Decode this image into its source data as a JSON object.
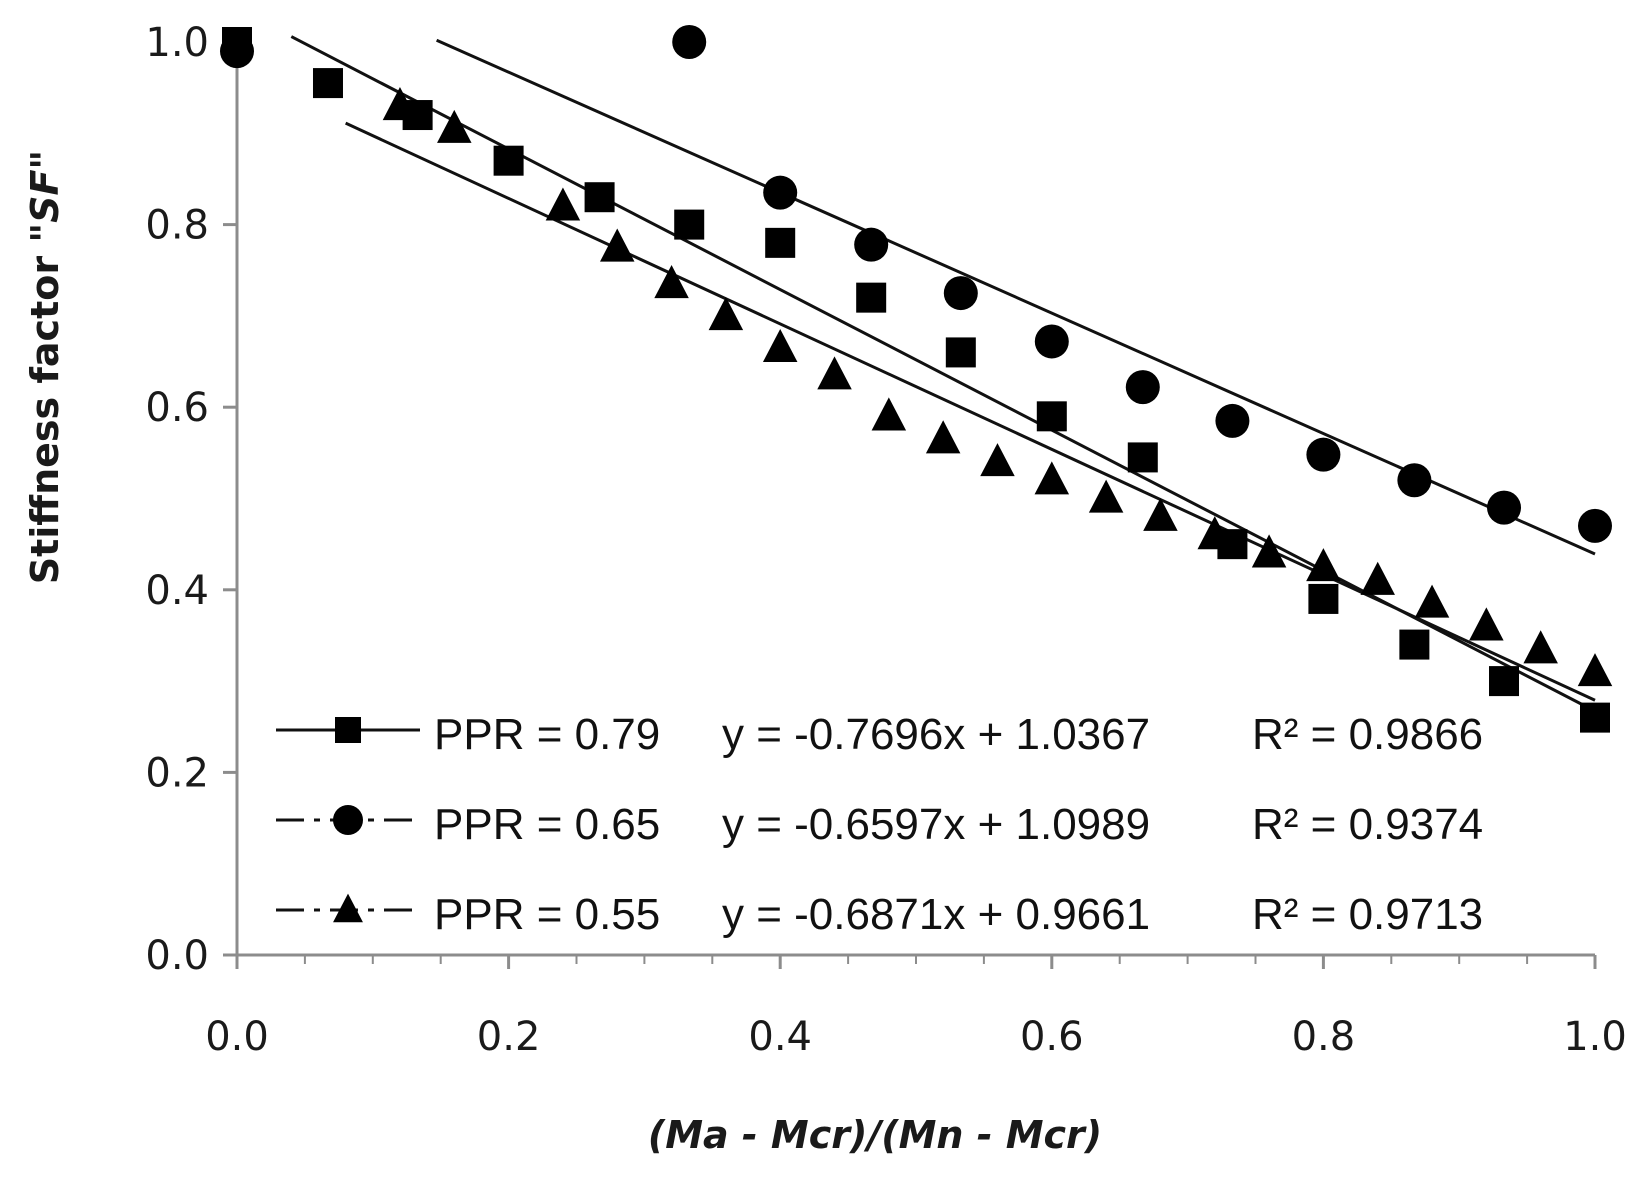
{
  "chart_data": {
    "type": "scatter",
    "title": "",
    "xlabel": "(Ma - Mcr)/(Mn - Mcr)",
    "ylabel_prefix": "Stiffness factor \"",
    "ylabel_italic": "SF",
    "ylabel_suffix": "\"",
    "xlim": [
      0,
      1
    ],
    "ylim": [
      0,
      1
    ],
    "x_ticks": [
      "0.0",
      "0.2",
      "0.4",
      "0.6",
      "0.8",
      "1.0"
    ],
    "y_ticks": [
      "0.0",
      "0.2",
      "0.4",
      "0.6",
      "0.8",
      "1.0"
    ],
    "legend_position": "bottom-left",
    "series": [
      {
        "name": "PPR = 0.79",
        "marker": "square",
        "line_style": "solid",
        "equation": "y = -0.7696x + 1.0367",
        "r2": "R² = 0.9866",
        "trend": {
          "slope": -0.7696,
          "intercept": 1.0367,
          "x_range": [
            0.04,
            1.0
          ]
        },
        "x": [
          0.0,
          0.067,
          0.133,
          0.2,
          0.267,
          0.333,
          0.4,
          0.467,
          0.533,
          0.6,
          0.667,
          0.733,
          0.8,
          0.867,
          0.933,
          1.0
        ],
        "y": [
          1.0,
          0.955,
          0.92,
          0.87,
          0.83,
          0.8,
          0.78,
          0.72,
          0.66,
          0.59,
          0.545,
          0.45,
          0.39,
          0.34,
          0.3,
          0.26
        ]
      },
      {
        "name": "PPR = 0.65",
        "marker": "circle",
        "line_style": "dashdot",
        "equation": "y = -0.6597x + 1.0989",
        "r2": "R² = 0.9374",
        "trend": {
          "slope": -0.6597,
          "intercept": 1.0989,
          "x_range": [
            0.147,
            1.0
          ]
        },
        "x": [
          0.0,
          0.333,
          0.4,
          0.467,
          0.533,
          0.6,
          0.667,
          0.733,
          0.8,
          0.867,
          0.933,
          1.0
        ],
        "y": [
          0.99,
          1.0,
          0.835,
          0.778,
          0.725,
          0.672,
          0.622,
          0.585,
          0.548,
          0.52,
          0.49,
          0.47
        ]
      },
      {
        "name": "PPR = 0.55",
        "marker": "triangle",
        "line_style": "dashdot",
        "equation": "y = -0.6871x + 0.9661",
        "r2": "R² = 0.9713",
        "trend": {
          "slope": -0.6871,
          "intercept": 0.9661,
          "x_range": [
            0.08,
            1.0
          ]
        },
        "x": [
          0.12,
          0.16,
          0.24,
          0.28,
          0.32,
          0.36,
          0.4,
          0.44,
          0.48,
          0.52,
          0.56,
          0.6,
          0.64,
          0.68,
          0.72,
          0.76,
          0.8,
          0.84,
          0.88,
          0.92,
          0.96,
          1.0
        ],
        "y": [
          0.93,
          0.905,
          0.82,
          0.775,
          0.735,
          0.7,
          0.665,
          0.635,
          0.59,
          0.565,
          0.54,
          0.52,
          0.5,
          0.48,
          0.46,
          0.44,
          0.425,
          0.41,
          0.385,
          0.36,
          0.335,
          0.31
        ]
      }
    ]
  }
}
